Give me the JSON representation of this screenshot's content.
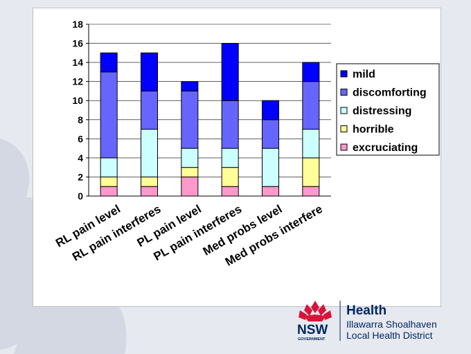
{
  "chart_data": {
    "type": "bar",
    "stacked": true,
    "categories": [
      "RL pain level",
      "RL pain interferes",
      "PL pain level",
      "PL pain interferes",
      "Med probs level",
      "Med probs interfere"
    ],
    "series": [
      {
        "name": "excruciating",
        "color": "#ff99cc",
        "values": [
          1,
          1,
          2,
          1,
          1,
          1
        ]
      },
      {
        "name": "horrible",
        "color": "#ffff99",
        "values": [
          1,
          1,
          1,
          2,
          0,
          3
        ]
      },
      {
        "name": "distressing",
        "color": "#ccffff",
        "values": [
          2,
          5,
          2,
          2,
          4,
          3
        ]
      },
      {
        "name": "discomforting",
        "color": "#6666ff",
        "values": [
          9,
          4,
          6,
          5,
          3,
          5
        ]
      },
      {
        "name": "mild",
        "color": "#0000ff",
        "values": [
          2,
          4,
          1,
          6,
          2,
          2
        ]
      }
    ],
    "legend_order": [
      "mild",
      "discomforting",
      "distressing",
      "horrible",
      "excruciating"
    ],
    "legend_position": "right",
    "ylim": [
      0,
      18
    ],
    "yticks": [
      "0",
      "2",
      "4",
      "6",
      "8",
      "10",
      "12",
      "14",
      "16",
      "18"
    ],
    "title": "",
    "xlabel": "",
    "ylabel": ""
  },
  "logo": {
    "brand": "NSW",
    "government": "GOVERNMENT",
    "health": "Health",
    "district_line1": "Illawarra Shoalhaven",
    "district_line2": "Local Health District"
  },
  "colors": {
    "nsw_navy": "#002664",
    "waratah_red": "#d7153a"
  }
}
